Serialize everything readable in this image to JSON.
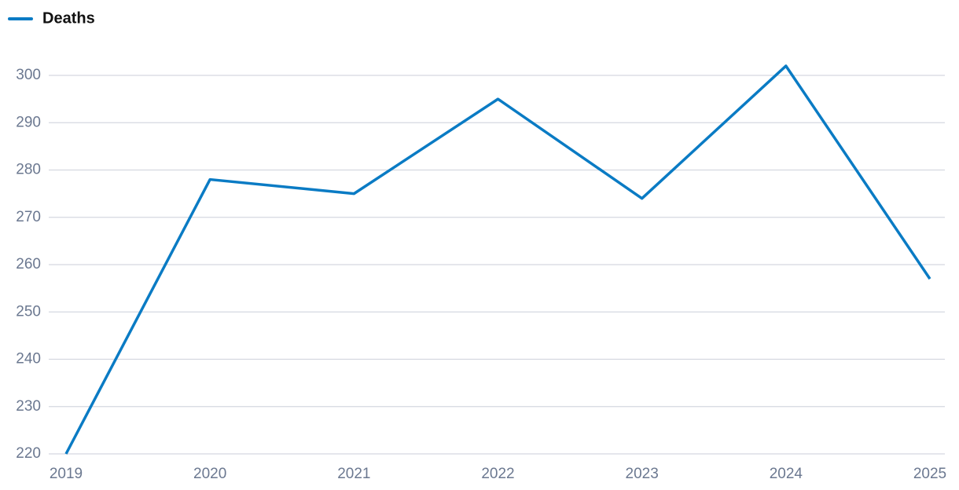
{
  "chart_data": {
    "type": "line",
    "x": [
      2019,
      2020,
      2021,
      2022,
      2023,
      2024,
      2025
    ],
    "series": [
      {
        "name": "Deaths",
        "color": "#0a7bc4",
        "values": [
          220,
          278,
          275,
          295,
          274,
          302,
          257
        ]
      }
    ],
    "xlim": [
      2019,
      2025
    ],
    "xticks": [
      2019,
      2020,
      2021,
      2022,
      2023,
      2024,
      2025
    ],
    "ylim": [
      220,
      305
    ],
    "yticks": [
      220,
      230,
      240,
      250,
      260,
      270,
      280,
      290,
      300
    ],
    "grid": true,
    "legend": "top-left"
  }
}
